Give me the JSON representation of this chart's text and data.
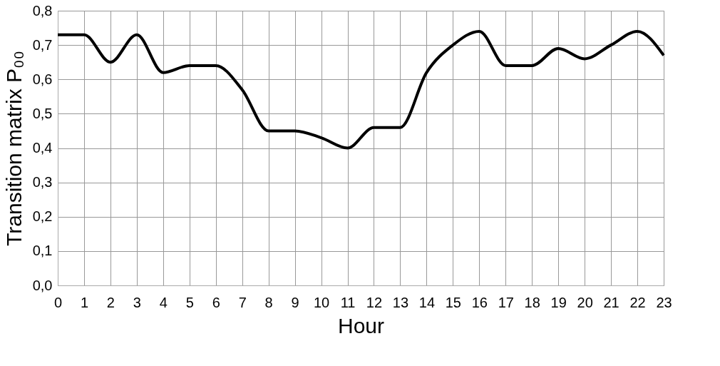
{
  "chart_data": {
    "type": "line",
    "xlabel": "Hour",
    "ylabel": "Transition matrix P₀₀",
    "x": [
      0,
      1,
      2,
      3,
      4,
      5,
      6,
      7,
      8,
      9,
      10,
      11,
      12,
      13,
      14,
      15,
      16,
      17,
      18,
      19,
      20,
      21,
      22,
      23
    ],
    "series": [
      {
        "color": "#000000",
        "values": [
          0.73,
          0.73,
          0.65,
          0.73,
          0.62,
          0.64,
          0.64,
          0.57,
          0.45,
          0.45,
          0.43,
          0.4,
          0.46,
          0.46,
          0.62,
          0.7,
          0.74,
          0.64,
          0.64,
          0.69,
          0.66,
          0.7,
          0.74,
          0.67
        ]
      }
    ],
    "xlim": [
      0,
      23
    ],
    "xticks": [
      0,
      1,
      2,
      3,
      4,
      5,
      6,
      7,
      8,
      9,
      10,
      11,
      12,
      13,
      14,
      15,
      16,
      17,
      18,
      19,
      20,
      21,
      22,
      23
    ],
    "ylim": [
      0,
      0.8
    ],
    "yticks": [
      {
        "value": 0,
        "label": "0,0"
      },
      {
        "value": 0.1,
        "label": "0,1"
      },
      {
        "value": 0.2,
        "label": "0,2"
      },
      {
        "value": 0.3,
        "label": "0,3"
      },
      {
        "value": 0.4,
        "label": "0,4"
      },
      {
        "value": 0.5,
        "label": "0,5"
      },
      {
        "value": 0.6,
        "label": "0,6"
      },
      {
        "value": 0.7,
        "label": "0,7"
      },
      {
        "value": 0.8,
        "label": "0,8"
      }
    ],
    "grid": true,
    "legend": false,
    "marker": "none",
    "line_style": "solid"
  }
}
